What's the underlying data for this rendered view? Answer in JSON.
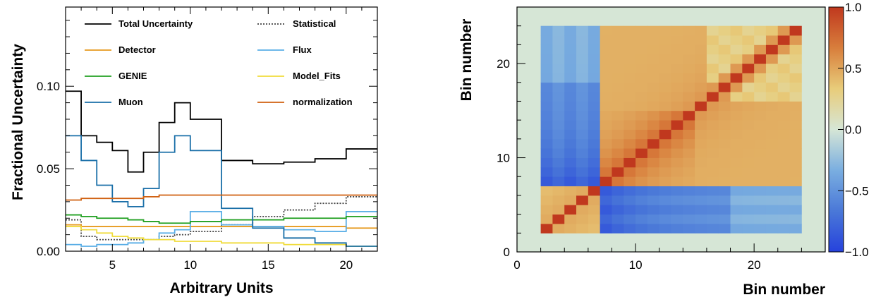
{
  "chart_data": [
    {
      "type": "line",
      "subtype": "step",
      "xlabel": "Arbitrary Units",
      "ylabel": "Fractional Uncertainty",
      "xlim": [
        2,
        22
      ],
      "ylim": [
        0,
        0.148
      ],
      "xticks": [
        5,
        10,
        15,
        20
      ],
      "yticks": [
        0,
        0.05,
        0.1
      ],
      "ytick_labels": [
        "0.00",
        "0.05",
        "0.10"
      ],
      "legend_position": "top",
      "bin_edges": [
        2,
        3,
        4,
        5,
        6,
        7,
        8,
        9,
        10,
        12,
        14,
        16,
        18,
        20,
        22
      ],
      "series": [
        {
          "name": "Total Uncertainty",
          "color": "#000000",
          "dash": "none",
          "values": [
            0.097,
            0.07,
            0.066,
            0.061,
            0.048,
            0.06,
            0.078,
            0.09,
            0.08,
            0.055,
            0.053,
            0.054,
            0.056,
            0.062
          ]
        },
        {
          "name": "Statistical",
          "color": "#444444",
          "dash": "2,2",
          "values": [
            0.019,
            0.009,
            0.007,
            0.007,
            0.007,
            0.007,
            0.009,
            0.01,
            0.012,
            0.016,
            0.021,
            0.025,
            0.029,
            0.033
          ]
        },
        {
          "name": "Detector",
          "color": "#e69a1e",
          "dash": "none",
          "values": [
            0.016,
            0.015,
            0.015,
            0.015,
            0.015,
            0.015,
            0.015,
            0.015,
            0.015,
            0.015,
            0.015,
            0.015,
            0.015,
            0.014
          ]
        },
        {
          "name": "Flux",
          "color": "#5aaee6",
          "dash": "none",
          "values": [
            0.004,
            0.003,
            0.004,
            0.004,
            0.005,
            0.007,
            0.011,
            0.013,
            0.024,
            0.016,
            0.015,
            0.013,
            0.012,
            0.024
          ]
        },
        {
          "name": "GENIE",
          "color": "#22a022",
          "dash": "none",
          "values": [
            0.022,
            0.021,
            0.02,
            0.02,
            0.019,
            0.018,
            0.017,
            0.017,
            0.018,
            0.019,
            0.019,
            0.02,
            0.02,
            0.021
          ]
        },
        {
          "name": "Model_Fits",
          "color": "#f0dc3c",
          "dash": "none",
          "values": [
            0.015,
            0.013,
            0.011,
            0.009,
            0.008,
            0.007,
            0.007,
            0.006,
            0.006,
            0.005,
            0.005,
            0.004,
            0.004,
            0.003
          ]
        },
        {
          "name": "Muon",
          "color": "#1a6fa8",
          "dash": "none",
          "values": [
            0.07,
            0.055,
            0.04,
            0.03,
            0.027,
            0.038,
            0.06,
            0.07,
            0.061,
            0.026,
            0.014,
            0.008,
            0.005,
            0.003
          ]
        },
        {
          "name": "normalization",
          "color": "#d06010",
          "dash": "none",
          "values": [
            0.031,
            0.032,
            0.032,
            0.032,
            0.032,
            0.033,
            0.034,
            0.034,
            0.034,
            0.034,
            0.034,
            0.034,
            0.034,
            0.034
          ]
        }
      ]
    },
    {
      "type": "heatmap",
      "xlabel": "Bin number",
      "ylabel": "Bin number",
      "xlim": [
        0,
        26
      ],
      "ylim": [
        0,
        26
      ],
      "xticks": [
        0,
        10,
        20
      ],
      "yticks": [
        0,
        10,
        20
      ],
      "matrix_range": [
        2,
        24
      ],
      "block_boundary": 7,
      "colorbar": {
        "min": -1.0,
        "max": 1.0,
        "ticks": [
          -1.0,
          -0.5,
          0.0,
          0.5,
          1.0
        ],
        "tick_labels": [
          "−1.0",
          "−0.5",
          "0.0",
          "0.5",
          "1.0"
        ],
        "colors": [
          "#2642dc",
          "#4a78d8",
          "#7aaee0",
          "#d6e6d6",
          "#e8cc7a",
          "#d87e3c",
          "#c0381e"
        ]
      },
      "block_values": {
        "low_low": 0.5,
        "high_high": 0.45,
        "cross": -0.55,
        "diagonal": 1.0
      }
    }
  ]
}
